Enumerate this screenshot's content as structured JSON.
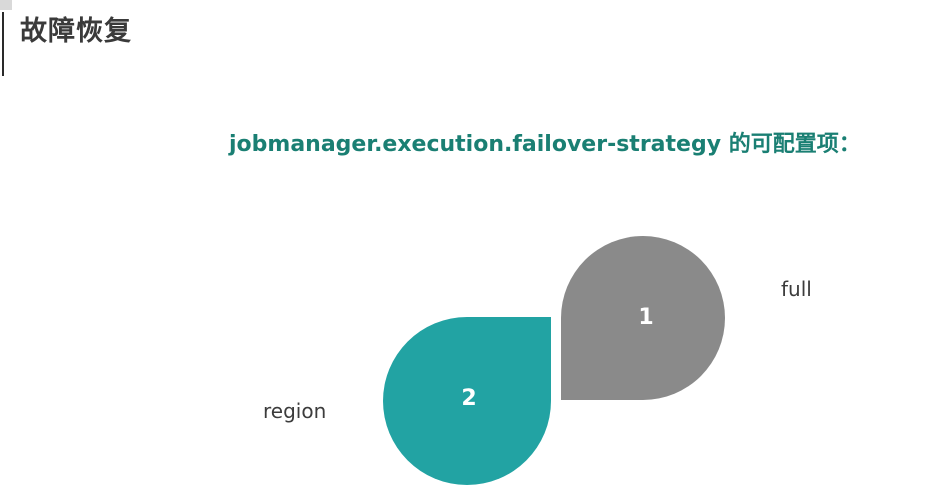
{
  "slide": {
    "section_title": "故障恢复",
    "heading": "jobmanager.execution.failover-strategy 的可配置项："
  },
  "options": [
    {
      "number": "1",
      "name": "full",
      "color": "#8a8a8a"
    },
    {
      "number": "2",
      "name": "region",
      "color": "#22a3a3"
    }
  ],
  "colors": {
    "title_text": "#3a3a3a",
    "heading_text": "#1a7f73",
    "number_text": "#ffffff"
  }
}
